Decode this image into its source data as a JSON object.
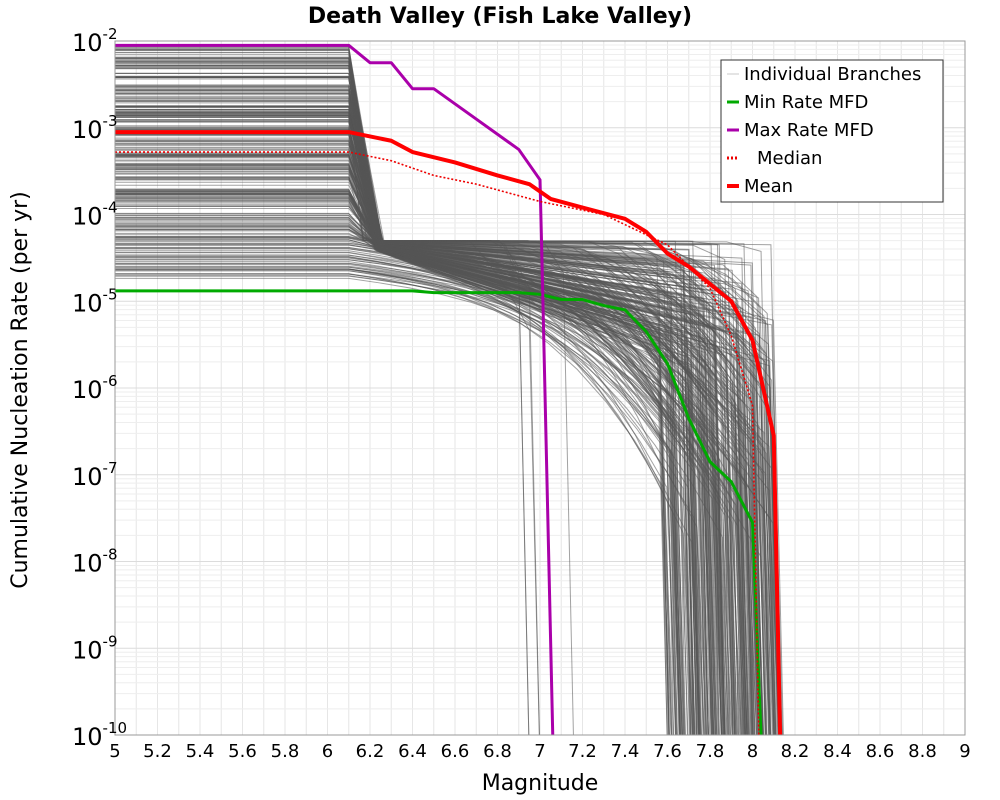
{
  "chart_data": {
    "type": "line",
    "title": "Death Valley (Fish Lake Valley)",
    "xlabel": "Magnitude",
    "ylabel": "Cumulative Nucleation Rate (per yr)",
    "xlim": [
      5,
      9
    ],
    "ylim_log10": [
      -10,
      -2
    ],
    "y_scale": "log",
    "grid": true,
    "x_ticks": [
      "5",
      "5.2",
      "5.4",
      "5.6",
      "5.8",
      "6",
      "6.2",
      "6.4",
      "6.6",
      "6.8",
      "7",
      "7.2",
      "7.4",
      "7.6",
      "7.8",
      "8",
      "8.2",
      "8.4",
      "8.6",
      "8.8",
      "9"
    ],
    "y_tick_exponents": [
      "-2",
      "-3",
      "-4",
      "-5",
      "-6",
      "-7",
      "-8",
      "-9",
      "-10"
    ],
    "y_tick_base": "10",
    "legend": {
      "position": "top-right",
      "entries": [
        {
          "label": "Individual Branches",
          "color": "#c8c8c8",
          "style": "solid-thin"
        },
        {
          "label": "Min Rate MFD",
          "color": "#00aa00",
          "style": "solid"
        },
        {
          "label": "Max Rate MFD",
          "color": "#aa00aa",
          "style": "solid"
        },
        {
          "label": "Median",
          "color": "#ee0000",
          "style": "dotted"
        },
        {
          "label": "Mean",
          "color": "#ff0000",
          "style": "solid-thick"
        }
      ]
    },
    "series": [
      {
        "name": "Min Rate MFD",
        "color": "#00aa00",
        "x": [
          5.0,
          6.1,
          6.4,
          6.5,
          6.9,
          7.0,
          7.1,
          7.2,
          7.3,
          7.4,
          7.5,
          7.6,
          7.7,
          7.8,
          7.9,
          8.0,
          8.04
        ],
        "y_log10": [
          -4.88,
          -4.88,
          -4.88,
          -4.9,
          -4.9,
          -4.92,
          -4.98,
          -4.98,
          -5.05,
          -5.1,
          -5.35,
          -5.72,
          -6.35,
          -6.85,
          -7.08,
          -7.55,
          -10
        ]
      },
      {
        "name": "Max Rate MFD",
        "color": "#aa00aa",
        "x": [
          5.0,
          6.1,
          6.2,
          6.3,
          6.4,
          6.5,
          6.7,
          6.9,
          7.0,
          7.01,
          7.06
        ],
        "y_log10": [
          -2.05,
          -2.05,
          -2.25,
          -2.25,
          -2.55,
          -2.55,
          -2.9,
          -3.25,
          -3.6,
          -4.6,
          -10
        ]
      },
      {
        "name": "Median",
        "color": "#ee0000",
        "x": [
          5.0,
          6.1,
          6.3,
          6.5,
          6.7,
          7.0,
          7.3,
          7.6,
          7.8,
          7.9,
          8.0,
          8.03
        ],
        "y_log10": [
          -3.28,
          -3.28,
          -3.38,
          -3.55,
          -3.65,
          -3.85,
          -4.0,
          -4.35,
          -4.85,
          -5.4,
          -6.2,
          -10
        ]
      },
      {
        "name": "Mean",
        "color": "#ff0000",
        "x": [
          5.0,
          6.1,
          6.3,
          6.4,
          6.6,
          6.8,
          6.95,
          7.05,
          7.2,
          7.4,
          7.5,
          7.6,
          7.7,
          7.8,
          7.9,
          8.0,
          8.1,
          8.13
        ],
        "y_log10": [
          -3.05,
          -3.05,
          -3.15,
          -3.28,
          -3.4,
          -3.55,
          -3.65,
          -3.82,
          -3.92,
          -4.05,
          -4.2,
          -4.45,
          -4.6,
          -4.8,
          -5.0,
          -5.45,
          -6.55,
          -10
        ]
      }
    ],
    "branch_ensemble": {
      "name": "Individual Branches",
      "color": "#555555",
      "count": 300,
      "rate_range_log10": [
        -4.75,
        -2.05
      ],
      "plateau_until_magnitude": 6.1,
      "max_magnitude_range": [
        7.6,
        8.15
      ],
      "outlier_drop_magnitudes": [
        6.95,
        7.0,
        7.16
      ]
    }
  }
}
